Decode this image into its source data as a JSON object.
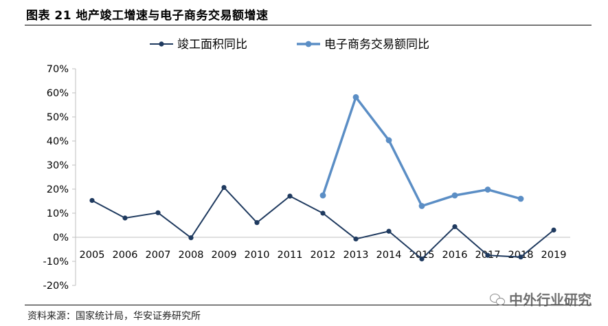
{
  "header": {
    "title": "图表 21 地产竣工增速与电子商务交易额增速"
  },
  "footer": {
    "source": "资料来源：国家统计局，华安证券研究所",
    "watermark": "中外行业研究"
  },
  "colors": {
    "series1": "#1f3a5f",
    "series2": "#5b8ec5",
    "axis": "#bfbfbf"
  },
  "chart_data": {
    "type": "line",
    "title": "",
    "xlabel": "",
    "ylabel": "",
    "x": [
      "2005",
      "2006",
      "2007",
      "2008",
      "2009",
      "2010",
      "2011",
      "2012",
      "2013",
      "2014",
      "2015",
      "2016",
      "2017",
      "2018",
      "2019"
    ],
    "ylim": [
      -0.2,
      0.7
    ],
    "yticks": [
      -0.2,
      -0.1,
      0,
      0.1,
      0.2,
      0.3,
      0.4,
      0.5,
      0.6,
      0.7
    ],
    "ytick_labels": [
      "-20%",
      "-10%",
      "0%",
      "10%",
      "20%",
      "30%",
      "40%",
      "50%",
      "60%",
      "70%"
    ],
    "legend_position": "top",
    "grid": false,
    "series": [
      {
        "name": "竣工面积同比",
        "color": "#1f3a5f",
        "values": [
          0.153,
          0.08,
          0.102,
          -0.002,
          0.207,
          0.061,
          0.171,
          0.1,
          -0.007,
          0.025,
          -0.09,
          0.044,
          -0.075,
          -0.082,
          0.03
        ]
      },
      {
        "name": "电子商务交易额同比",
        "color": "#5b8ec5",
        "values": [
          null,
          null,
          null,
          null,
          null,
          null,
          null,
          0.174,
          0.582,
          0.403,
          0.13,
          0.174,
          0.198,
          0.16,
          null
        ]
      }
    ]
  }
}
